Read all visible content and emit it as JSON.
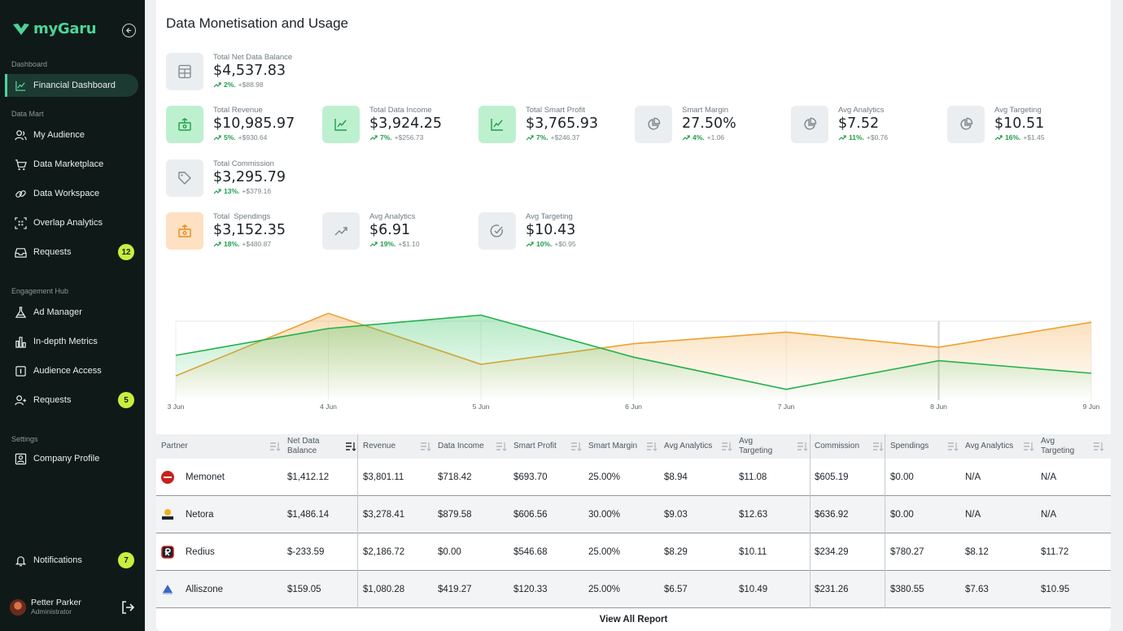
{
  "brand": {
    "name": "myGaru"
  },
  "sidebar": {
    "sections": [
      {
        "label": "Dashboard",
        "items": [
          {
            "label": "Financial Dashboard",
            "icon": "line-chart-icon",
            "active": true
          }
        ]
      },
      {
        "label": "Data Mart",
        "items": [
          {
            "label": "My Audience",
            "icon": "users-icon"
          },
          {
            "label": "Data Marketplace",
            "icon": "cart-icon"
          },
          {
            "label": "Data Workspace",
            "icon": "link-icon"
          },
          {
            "label": "Overlap Analytics",
            "icon": "grid-scan-icon"
          },
          {
            "label": "Requests",
            "icon": "inbox-icon",
            "badge": "12"
          }
        ]
      },
      {
        "label": "Engagement Hub",
        "items": [
          {
            "label": "Ad Manager",
            "icon": "flask-icon"
          },
          {
            "label": "In-depth Metrics",
            "icon": "bar-chart-icon"
          },
          {
            "label": "Audience Access",
            "icon": "badge-icon"
          },
          {
            "label": "Requests",
            "icon": "user-plus-icon",
            "badge": "5"
          }
        ]
      },
      {
        "label": "Settings",
        "items": [
          {
            "label": "Company Profile",
            "icon": "profile-icon"
          }
        ]
      }
    ],
    "notifications": {
      "label": "Notifications",
      "badge": "7"
    },
    "user": {
      "name": "Petter Parker",
      "role": "Administrator"
    }
  },
  "page": {
    "title": "Data Monetisation and Usage"
  },
  "stats": {
    "net_balance": {
      "label": "Total Net Data Balance",
      "value": "$4,537.83",
      "pct": "2%.",
      "abs": "+$88.98"
    },
    "revenue": {
      "label": "Total Revenue",
      "value": "$10,985.97",
      "pct": "5%.",
      "abs": "+$930.64"
    },
    "data_income": {
      "label": "Total Data Income",
      "value": "$3,924.25",
      "pct": "7%.",
      "abs": "+$256.73"
    },
    "smart_profit": {
      "label": "Total Smart Profit",
      "value": "$3,765.93",
      "pct": "7%.",
      "abs": "+$246.37"
    },
    "smart_margin": {
      "label": "Smart Margin",
      "value": "27.50%",
      "pct": "4%.",
      "abs": "+1.06"
    },
    "avg_analytics": {
      "label": "Avg Analytics",
      "value": "$7.52",
      "pct": "11%.",
      "abs": "+$0.76"
    },
    "avg_targeting": {
      "label": "Avg Targeting",
      "value": "$10.51",
      "pct": "16%.",
      "abs": "+$1.45"
    },
    "commission": {
      "label": "Total Commission",
      "value": "$3,295.79",
      "pct": "13%.",
      "abs": "+$379.16"
    },
    "spendings": {
      "label": "Total  Spendings",
      "value": "$3,152.35",
      "pct": "18%.",
      "abs": "+$480.87"
    },
    "spend_avg_analytics": {
      "label": "Avg Analytics",
      "value": "$6.91",
      "pct": "19%.",
      "abs": "+$1.10"
    },
    "spend_avg_targeting": {
      "label": "Avg Targeting",
      "value": "$10.43",
      "pct": "10%.",
      "abs": "+$0.95"
    }
  },
  "chart_data": {
    "type": "area",
    "x": [
      "3 Jun",
      "4 Jun",
      "5 Jun",
      "6 Jun",
      "7 Jun",
      "8 Jun",
      "9 Jun"
    ],
    "series": [
      {
        "color": "#22b14c",
        "values": [
          0.5,
          0.8,
          0.95,
          0.48,
          0.12,
          0.44,
          0.3
        ]
      },
      {
        "color": "#f0a030",
        "values": [
          0.27,
          0.97,
          0.4,
          0.63,
          0.76,
          0.59,
          0.87
        ]
      }
    ],
    "grid": true
  },
  "table": {
    "headers": [
      "Partner",
      "Net Data Balance",
      "Revenue",
      "Data Income",
      "Smart Profit",
      "Smart Margin",
      "Avg Analytics",
      "Avg Targeting",
      "Commission",
      "Spendings",
      "Avg Analytics",
      "Avg Targeting"
    ],
    "rows": [
      {
        "partner": "Memonet",
        "logo": "memonet-logo",
        "cells": [
          "$1,412.12",
          "$3,801.11",
          "$718.42",
          "$693.70",
          "25.00%",
          "$8.94",
          "$11.08",
          "$605.19",
          "$0.00",
          "N/A",
          "N/A"
        ]
      },
      {
        "partner": "Netora",
        "logo": "netora-logo",
        "cells": [
          "$1,486.14",
          "$3,278.41",
          "$879.58",
          "$606.56",
          "30.00%",
          "$9.03",
          "$12.63",
          "$636.92",
          "$0.00",
          "N/A",
          "N/A"
        ]
      },
      {
        "partner": "Redius",
        "logo": "redius-logo",
        "cells": [
          "$-233.59",
          "$2,186.72",
          "$0.00",
          "$546.68",
          "25.00%",
          "$8.29",
          "$10.11",
          "$234.29",
          "$780.27",
          "$8.12",
          "$11.72"
        ]
      },
      {
        "partner": "Alliszone",
        "logo": "alliszone-logo",
        "cells": [
          "$159.05",
          "$1,080.28",
          "$419.27",
          "$120.33",
          "25.00%",
          "$6.57",
          "$10.49",
          "$231.26",
          "$380.55",
          "$7.63",
          "$10.95"
        ]
      }
    ],
    "view_all": "View All Report"
  }
}
